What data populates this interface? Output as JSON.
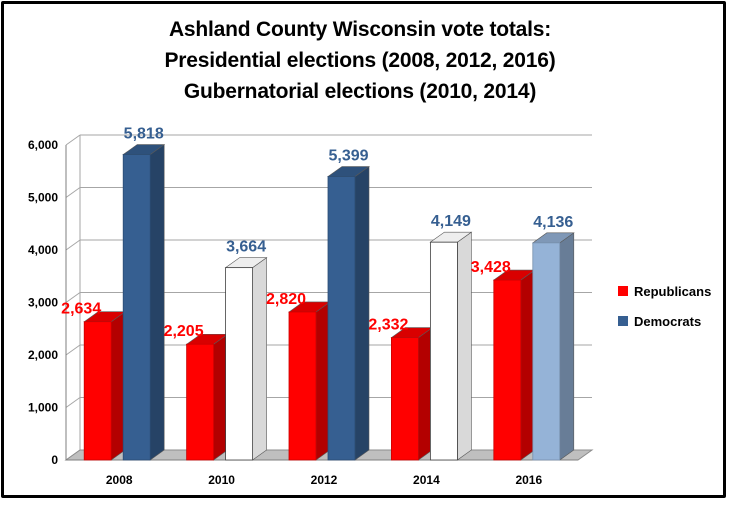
{
  "chart_data": {
    "type": "bar",
    "title_lines": [
      "Ashland County Wisconsin vote totals:",
      "Presidential elections (2008, 2012, 2016)",
      "Gubernatorial elections (2010, 2014)"
    ],
    "categories": [
      "2008",
      "2010",
      "2012",
      "2014",
      "2016"
    ],
    "series": [
      {
        "name": "Republicans",
        "values": [
          2634,
          2205,
          2820,
          2332,
          3428
        ],
        "labels": [
          "2,634",
          "2,205",
          "2,820",
          "2,332",
          "3,428"
        ],
        "fills": [
          "#ff0000",
          "#ff0000",
          "#ff0000",
          "#ff0000",
          "#ff0000"
        ],
        "label_color": "#ff0000"
      },
      {
        "name": "Democrats",
        "values": [
          5818,
          3664,
          5399,
          4149,
          4136
        ],
        "labels": [
          "5,818",
          "3,664",
          "5,399",
          "4,149",
          "4,136"
        ],
        "fills": [
          "#365f91",
          "#ffffff",
          "#365f91",
          "#ffffff",
          "#95b3d7"
        ],
        "label_color": "#365f91"
      }
    ],
    "yticks": [
      0,
      1000,
      2000,
      3000,
      4000,
      5000,
      6000
    ],
    "ytick_labels": [
      "0",
      "1,000",
      "2,000",
      "3,000",
      "4,000",
      "5,000",
      "6,000"
    ],
    "ylim": [
      0,
      6000
    ],
    "grid": true,
    "legend_position": "right"
  },
  "legend": [
    {
      "label": "Republicans",
      "color": "#ff0000"
    },
    {
      "label": "Democrats",
      "color": "#365f91"
    }
  ]
}
